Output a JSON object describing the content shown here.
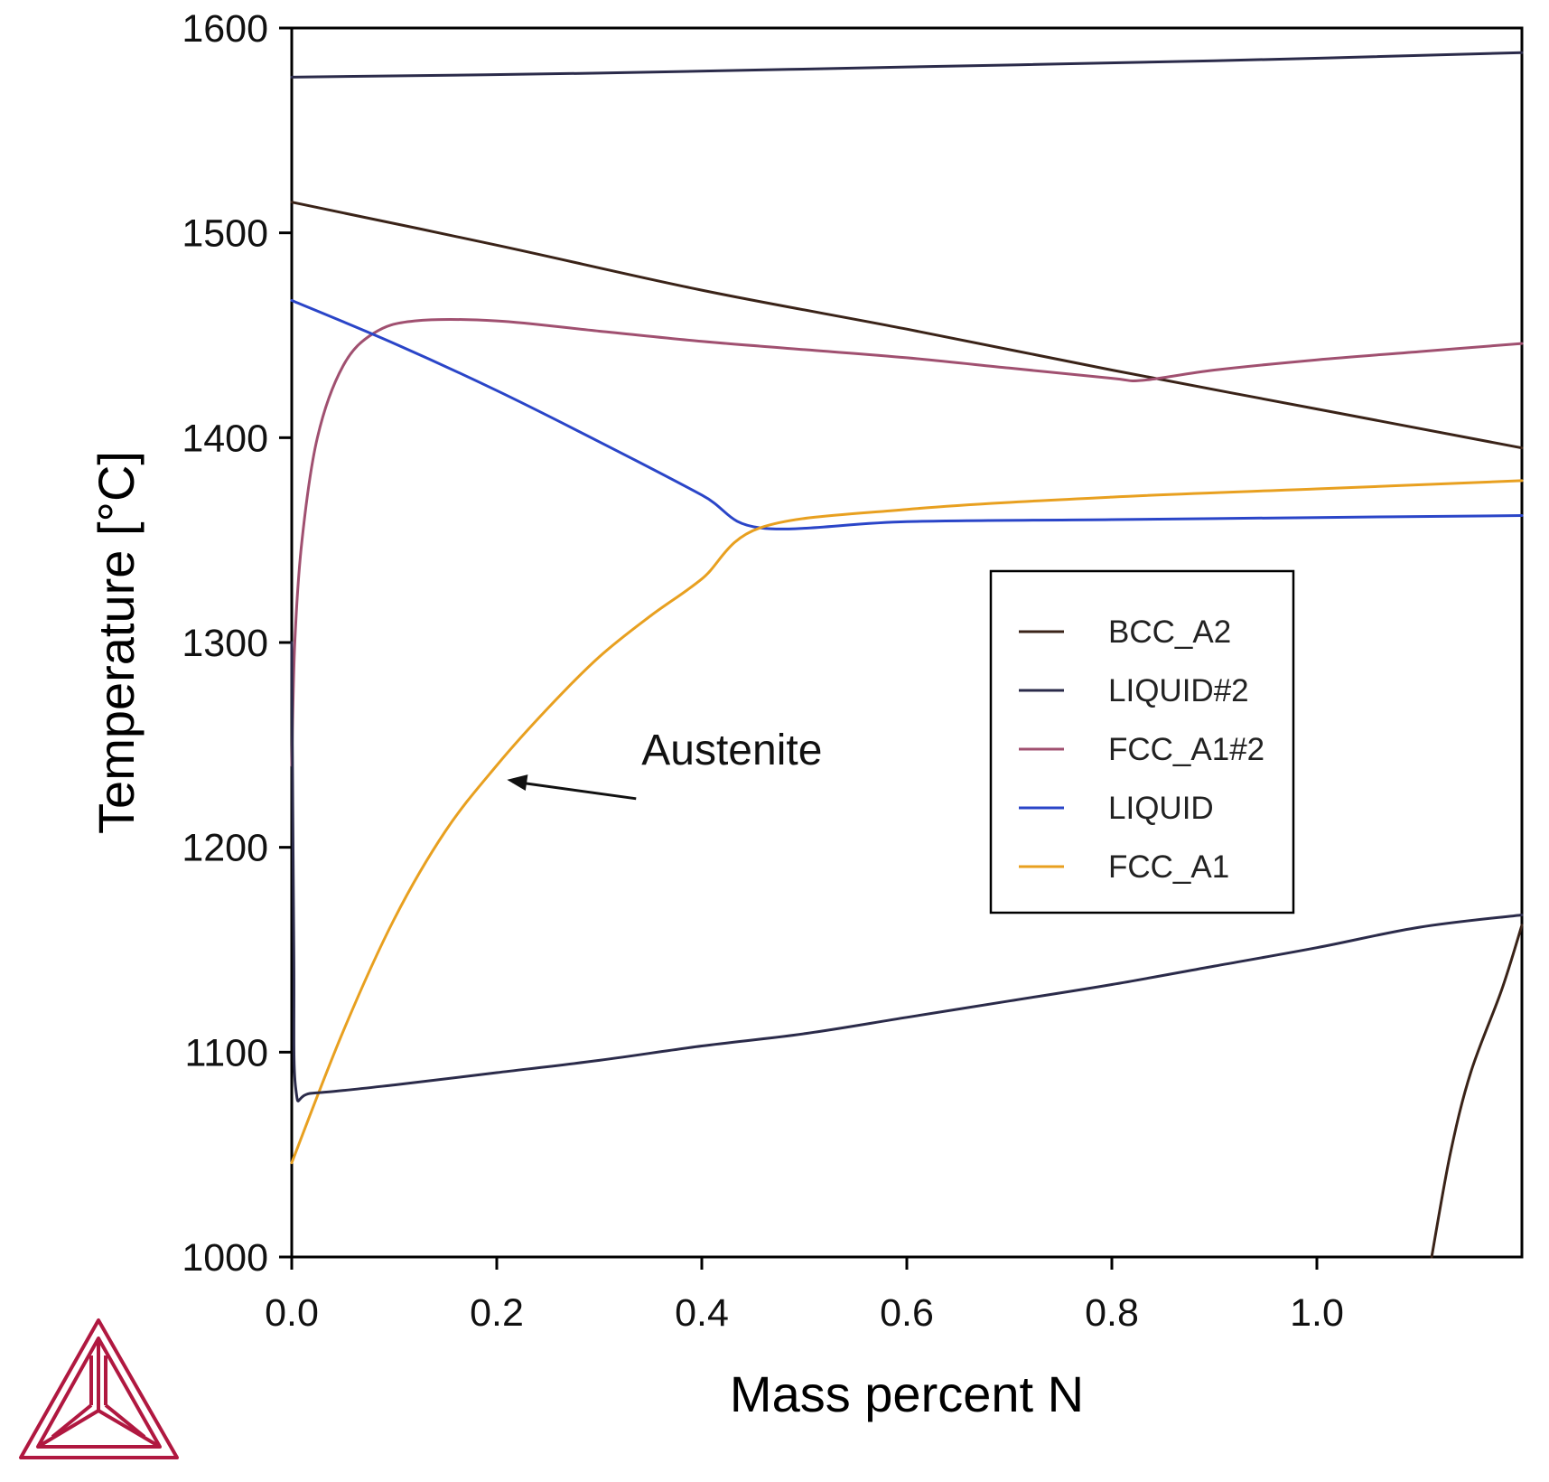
{
  "chart_data": {
    "type": "line",
    "title": "",
    "xlabel": "Mass percent N",
    "ylabel": "Temperature [°C]",
    "xlim": [
      0,
      1.2
    ],
    "ylim": [
      1000,
      1600
    ],
    "xticks": [
      0.0,
      0.2,
      0.4,
      0.6,
      0.8,
      1.0
    ],
    "xtick_labels": [
      "0.0",
      "0.2",
      "0.4",
      "0.6",
      "0.8",
      "1.0"
    ],
    "yticks": [
      1000,
      1100,
      1200,
      1300,
      1400,
      1500,
      1600
    ],
    "ytick_labels": [
      "1000",
      "1100",
      "1200",
      "1300",
      "1400",
      "1500",
      "1600"
    ],
    "grid": false,
    "legend_position": "right-center",
    "legend": [
      {
        "name": "BCC_A2",
        "color": "#3a2318"
      },
      {
        "name": "LIQUID#2",
        "color": "#2b2b4a"
      },
      {
        "name": "FCC_A1#2",
        "color": "#a05070"
      },
      {
        "name": "LIQUID",
        "color": "#2a45c8"
      },
      {
        "name": "FCC_A1",
        "color": "#e8a020"
      }
    ],
    "series": [
      {
        "name": "LIQUID#2 (gas boundary)",
        "color": "#2b2b4a",
        "points": [
          [
            0,
            1576
          ],
          [
            0.3,
            1578
          ],
          [
            0.6,
            1581
          ],
          [
            0.9,
            1584
          ],
          [
            1.2,
            1588
          ]
        ]
      },
      {
        "name": "BCC_A2",
        "color": "#3a2318",
        "points": [
          [
            0,
            1515
          ],
          [
            0.2,
            1494
          ],
          [
            0.4,
            1472
          ],
          [
            0.6,
            1453
          ],
          [
            0.8,
            1433
          ],
          [
            1.0,
            1414
          ],
          [
            1.2,
            1395
          ]
        ]
      },
      {
        "name": "FCC_A1#2",
        "color": "#a05070",
        "points": [
          [
            0,
            1240
          ],
          [
            0.003,
            1300
          ],
          [
            0.01,
            1350
          ],
          [
            0.025,
            1400
          ],
          [
            0.05,
            1435
          ],
          [
            0.08,
            1451
          ],
          [
            0.12,
            1457
          ],
          [
            0.2,
            1457
          ],
          [
            0.3,
            1452
          ],
          [
            0.4,
            1447
          ],
          [
            0.5,
            1443
          ],
          [
            0.6,
            1439
          ],
          [
            0.7,
            1434
          ],
          [
            0.8,
            1429
          ],
          [
            0.83,
            1428
          ],
          [
            0.9,
            1433
          ],
          [
            1.0,
            1438
          ],
          [
            1.1,
            1442
          ],
          [
            1.2,
            1446
          ]
        ]
      },
      {
        "name": "LIQUID",
        "color": "#2a45c8",
        "points": [
          [
            0,
            1467
          ],
          [
            0.1,
            1446
          ],
          [
            0.2,
            1423
          ],
          [
            0.3,
            1398
          ],
          [
            0.4,
            1372
          ],
          [
            0.457,
            1356
          ],
          [
            0.6,
            1359
          ],
          [
            0.8,
            1360
          ],
          [
            1.0,
            1361
          ],
          [
            1.2,
            1362
          ]
        ]
      },
      {
        "name": "FCC_A1",
        "color": "#e8a020",
        "points": [
          [
            0,
            1046
          ],
          [
            0.05,
            1110
          ],
          [
            0.1,
            1165
          ],
          [
            0.15,
            1208
          ],
          [
            0.2,
            1240
          ],
          [
            0.25,
            1268
          ],
          [
            0.3,
            1293
          ],
          [
            0.35,
            1313
          ],
          [
            0.4,
            1331
          ],
          [
            0.457,
            1356
          ],
          [
            0.6,
            1365
          ],
          [
            0.8,
            1371
          ],
          [
            1.0,
            1375
          ],
          [
            1.2,
            1379
          ]
        ]
      },
      {
        "name": "LIQUID#2 (lower)",
        "color": "#2b2b4a",
        "points": [
          [
            0,
            1300
          ],
          [
            0.002,
            1150
          ],
          [
            0.004,
            1082
          ],
          [
            0.02,
            1080
          ],
          [
            0.1,
            1084
          ],
          [
            0.2,
            1090
          ],
          [
            0.3,
            1096
          ],
          [
            0.4,
            1103
          ],
          [
            0.5,
            1109
          ],
          [
            0.6,
            1117
          ],
          [
            0.7,
            1125
          ],
          [
            0.8,
            1133
          ],
          [
            0.9,
            1142
          ],
          [
            1.0,
            1151
          ],
          [
            1.1,
            1161
          ],
          [
            1.2,
            1167
          ]
        ]
      },
      {
        "name": "BCC_A2 (lower right)",
        "color": "#3a2318",
        "points": [
          [
            1.112,
            1000
          ],
          [
            1.13,
            1050
          ],
          [
            1.15,
            1090
          ],
          [
            1.18,
            1130
          ],
          [
            1.2,
            1162
          ]
        ]
      }
    ],
    "annotations": [
      {
        "text": "Austenite",
        "x": 0.35,
        "y": 1237,
        "arrow_to": [
          0.21,
          1233
        ]
      }
    ]
  },
  "logo": {
    "name": "Thermo-Calc logo",
    "color": "#b01840"
  }
}
